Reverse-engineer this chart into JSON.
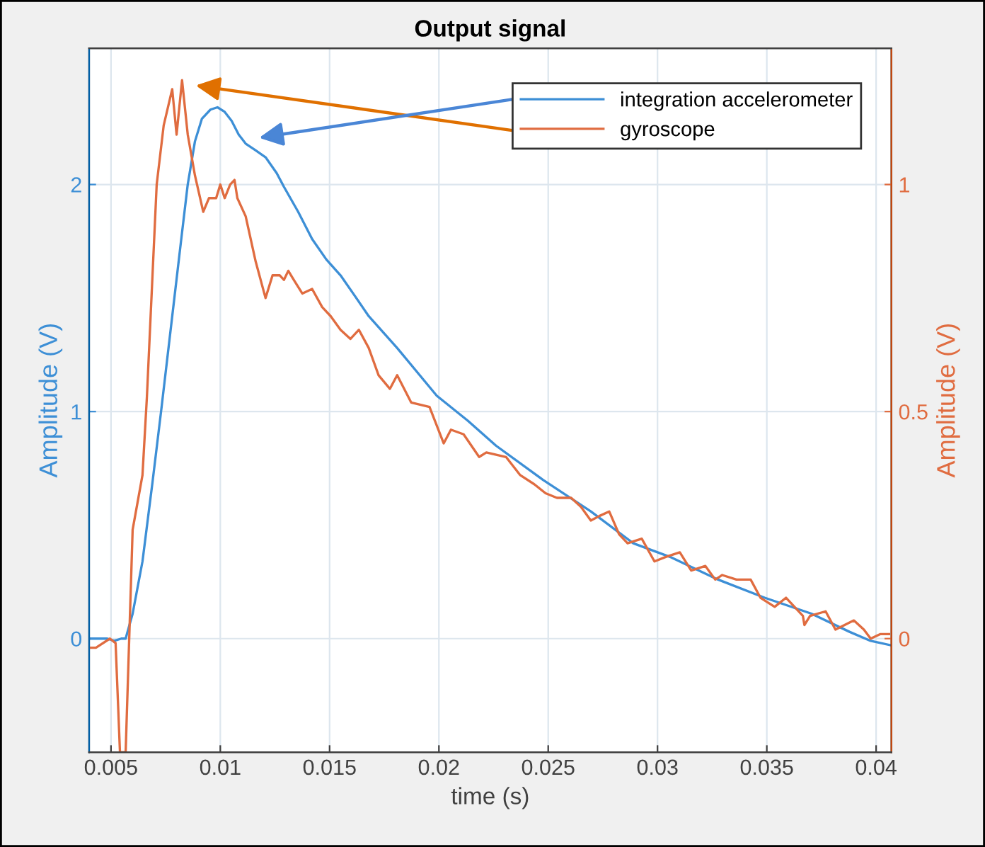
{
  "chart_data": {
    "type": "line",
    "title": "Output signal",
    "xlabel": "time (s)",
    "ylabel": "Amplitude (V)",
    "y2label": "Amplitude (V)",
    "xlim": [
      0.004,
      0.0407
    ],
    "xticks": [
      0.005,
      0.01,
      0.015,
      0.02,
      0.025,
      0.03,
      0.035,
      0.04
    ],
    "ylim": [
      -0.5,
      2.6
    ],
    "yticks": [
      0,
      1,
      2
    ],
    "y2lim": [
      -0.25,
      1.3
    ],
    "y2ticks": [
      0,
      0.5,
      1
    ],
    "grid": true,
    "legend": "top right",
    "marker": "none",
    "line_style": "solid",
    "series": [
      {
        "name": "integration accelerometer",
        "color": "#3d8fd6",
        "x": [
          0.00405,
          0.00483,
          0.00515,
          0.00547,
          0.00567,
          0.00599,
          0.00644,
          0.0069,
          0.00729,
          0.00774,
          0.00819,
          0.00851,
          0.00884,
          0.00916,
          0.00955,
          0.00987,
          0.0102,
          0.01052,
          0.01084,
          0.01116,
          0.01162,
          0.01207,
          0.01258,
          0.01291,
          0.01356,
          0.0142,
          0.01485,
          0.0155,
          0.01615,
          0.01679,
          0.01809,
          0.0199,
          0.02132,
          0.02261,
          0.02475,
          0.02695,
          0.02889,
          0.03057,
          0.03277,
          0.0349,
          0.03704,
          0.03878,
          0.03975,
          0.0407
        ],
        "values": [
          0.0,
          0.0,
          -0.01,
          0.0,
          0.0,
          0.11,
          0.34,
          0.69,
          1.0,
          1.37,
          1.74,
          2.0,
          2.19,
          2.29,
          2.33,
          2.34,
          2.32,
          2.28,
          2.22,
          2.18,
          2.15,
          2.12,
          2.05,
          1.99,
          1.88,
          1.76,
          1.67,
          1.6,
          1.51,
          1.42,
          1.28,
          1.07,
          0.96,
          0.85,
          0.7,
          0.56,
          0.42,
          0.36,
          0.26,
          0.18,
          0.11,
          0.03,
          -0.01,
          -0.03
        ]
      },
      {
        "name": "gyroscope",
        "color": "#e06c40",
        "axis": "y2",
        "x": [
          0.00405,
          0.00431,
          0.00495,
          0.00521,
          0.00541,
          0.00567,
          0.00599,
          0.00644,
          0.00664,
          0.00709,
          0.00741,
          0.0078,
          0.008,
          0.00825,
          0.00851,
          0.00884,
          0.00922,
          0.00948,
          0.00981,
          0.01,
          0.0102,
          0.01045,
          0.01065,
          0.01078,
          0.01116,
          0.01162,
          0.01207,
          0.01239,
          0.01272,
          0.01291,
          0.01311,
          0.01336,
          0.01375,
          0.0142,
          0.01466,
          0.01505,
          0.0155,
          0.01595,
          0.01634,
          0.01679,
          0.01724,
          0.01776,
          0.01809,
          0.01873,
          0.01957,
          0.02022,
          0.02055,
          0.02113,
          0.02184,
          0.02217,
          0.02307,
          0.02372,
          0.02436,
          0.02488,
          0.0254,
          0.02605,
          0.0265,
          0.02695,
          0.02734,
          0.02779,
          0.02824,
          0.02863,
          0.02928,
          0.02986,
          0.03038,
          0.03102,
          0.03154,
          0.03219,
          0.03264,
          0.03296,
          0.03361,
          0.03426,
          0.03471,
          0.03536,
          0.03588,
          0.03665,
          0.03672,
          0.03698,
          0.03769,
          0.03814,
          0.03898,
          0.03944,
          0.03975,
          0.0402,
          0.04059
        ],
        "values": [
          -0.02,
          -0.02,
          0.0,
          -0.01,
          -0.25,
          -0.25,
          0.24,
          0.36,
          0.53,
          1.0,
          1.13,
          1.21,
          1.11,
          1.23,
          1.11,
          1.02,
          0.94,
          0.97,
          0.97,
          1.0,
          0.97,
          1.0,
          1.01,
          0.97,
          0.93,
          0.83,
          0.75,
          0.8,
          0.8,
          0.79,
          0.81,
          0.79,
          0.76,
          0.77,
          0.73,
          0.71,
          0.68,
          0.66,
          0.68,
          0.64,
          0.58,
          0.55,
          0.58,
          0.52,
          0.51,
          0.43,
          0.46,
          0.45,
          0.4,
          0.41,
          0.4,
          0.36,
          0.34,
          0.32,
          0.31,
          0.31,
          0.29,
          0.26,
          0.27,
          0.28,
          0.23,
          0.21,
          0.22,
          0.17,
          0.18,
          0.19,
          0.15,
          0.16,
          0.13,
          0.14,
          0.13,
          0.13,
          0.09,
          0.07,
          0.09,
          0.05,
          0.03,
          0.05,
          0.06,
          0.02,
          0.04,
          0.02,
          0.0,
          0.01,
          0.01
        ]
      }
    ]
  }
}
